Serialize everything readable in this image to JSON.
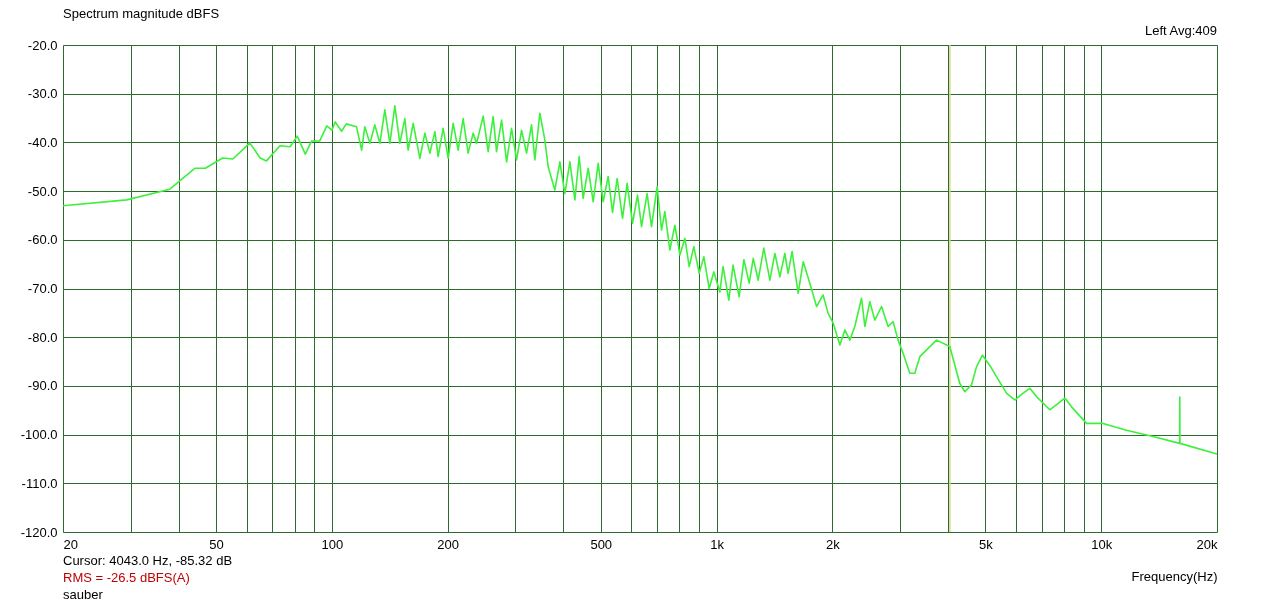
{
  "chart_data": {
    "type": "line",
    "title": "Spectrum magnitude dBFS",
    "xlabel": "Frequency(Hz)",
    "annotations": [
      "Left  Avg:409",
      "Cursor:  4043.0 Hz, -85.32 dB",
      "RMS =  -26.5 dBFS(A)",
      "sauber"
    ],
    "log": "x",
    "grid": true,
    "marker": "none",
    "line_style": "solid",
    "xlim": [
      20,
      20000
    ],
    "ylim": [
      -120,
      -20
    ],
    "xticks": [
      {
        "value": 20,
        "label": "20"
      },
      {
        "value": 30,
        "label": null
      },
      {
        "value": 40,
        "label": null
      },
      {
        "value": 50,
        "label": "50"
      },
      {
        "value": 60,
        "label": null
      },
      {
        "value": 70,
        "label": null
      },
      {
        "value": 80,
        "label": null
      },
      {
        "value": 90,
        "label": null
      },
      {
        "value": 100,
        "label": "100"
      },
      {
        "value": 200,
        "label": "200"
      },
      {
        "value": 300,
        "label": null
      },
      {
        "value": 400,
        "label": null
      },
      {
        "value": 500,
        "label": "500"
      },
      {
        "value": 600,
        "label": null
      },
      {
        "value": 700,
        "label": null
      },
      {
        "value": 800,
        "label": null
      },
      {
        "value": 900,
        "label": null
      },
      {
        "value": 1000,
        "label": "1k"
      },
      {
        "value": 2000,
        "label": "2k"
      },
      {
        "value": 3000,
        "label": null
      },
      {
        "value": 4000,
        "label": null
      },
      {
        "value": 5000,
        "label": "5k"
      },
      {
        "value": 6000,
        "label": null
      },
      {
        "value": 7000,
        "label": null
      },
      {
        "value": 8000,
        "label": null
      },
      {
        "value": 9000,
        "label": null
      },
      {
        "value": 10000,
        "label": "10k"
      },
      {
        "value": 20000,
        "label": "20k"
      }
    ],
    "yticks": [
      {
        "value": -20,
        "label": "-20.0"
      },
      {
        "value": -30,
        "label": "-30.0"
      },
      {
        "value": -40,
        "label": "-40.0"
      },
      {
        "value": -50,
        "label": "-50.0"
      },
      {
        "value": -60,
        "label": "-60.0"
      },
      {
        "value": -70,
        "label": "-70.0"
      },
      {
        "value": -80,
        "label": "-80.0"
      },
      {
        "value": -90,
        "label": "-90.0"
      },
      {
        "value": -100,
        "label": "-100.0"
      },
      {
        "value": -110,
        "label": "-110.0"
      },
      {
        "value": -120,
        "label": "-120.0"
      }
    ],
    "ref_lines": [
      {
        "axis": "x",
        "value": 4043,
        "label": null,
        "color": "#d8d890"
      }
    ],
    "x": [
      20,
      29.3,
      37.9,
      44.1,
      46.9,
      52.0,
      55.3,
      61.2,
      65.1,
      67.6,
      73.3,
      77.9,
      81.3,
      85.3,
      88.6,
      93,
      97,
      100,
      102,
      106,
      109,
      115.9,
      119.5,
      121.8,
      125.6,
      129.3,
      133.3,
      137.3,
      141.5,
      145.8,
      150.2,
      154.8,
      157.9,
      162.7,
      169.3,
      174.5,
      179.8,
      185.3,
      188.9,
      194.7,
      200.6,
      206.7,
      213.0,
      219.4,
      226.1,
      233.0,
      237.8,
      247.4,
      254.9,
      262.6,
      268.0,
      276.2,
      284.6,
      293.2,
      302.1,
      311.3,
      320.7,
      330.4,
      337.0,
      347.3,
      357.8,
      365.0,
      379.9,
      391.5,
      403.4,
      415.7,
      428.3,
      439.5,
      450.1,
      463.8,
      477.9,
      492.4,
      507.4,
      522.7,
      536.6,
      551.6,
      569.7,
      585.6,
      604.8,
      623.2,
      638.3,
      659.9,
      677.6,
      700.8,
      719.5,
      733.8,
      756.2,
      779.3,
      803.0,
      827.4,
      849.0,
      873.0,
      901.3,
      926.9,
      956.8,
      984.0,
      1020,
      1040,
      1076,
      1104,
      1145,
      1178,
      1216,
      1246,
      1283,
      1327,
      1376,
      1418,
      1461,
      1505,
      1535,
      1572,
      1630,
      1680,
      1748,
      1820,
      1892,
      1950,
      2010,
      2092,
      2156,
      2221,
      2288,
      2382,
      2430,
      2503,
      2579,
      2685,
      2793,
      2877,
      2965,
      3055,
      3180,
      3277,
      3377,
      3548,
      3731,
      4040,
      4290,
      4420,
      4600,
      4740,
      4913,
      5133,
      5343,
      5672,
      5963,
      6266,
      6523,
      6788,
      7352,
      8043,
      8372,
      9159,
      10110,
      11635,
      13640,
      15990,
      16007,
      16020,
      20000
    ],
    "series": [
      {
        "color": "#3cf03c",
        "values": [
          -53.0,
          -51.8,
          -49.6,
          -45.3,
          -45.3,
          -43.2,
          -43.4,
          -40.1,
          -43.2,
          -43.8,
          -40.7,
          -40.9,
          -38.7,
          -42.4,
          -39.7,
          -39.7,
          -36.6,
          -37.5,
          -35.8,
          -37.7,
          -36.2,
          -36.8,
          -41.6,
          -36.8,
          -40.2,
          -36.4,
          -40.2,
          -33.3,
          -40.2,
          -32.5,
          -40.2,
          -35.1,
          -41.6,
          -36.1,
          -43.3,
          -38.1,
          -42.2,
          -37.8,
          -42.9,
          -37.1,
          -43.3,
          -36.1,
          -41.6,
          -35.1,
          -42.2,
          -38.1,
          -40.2,
          -34.6,
          -41.9,
          -34.7,
          -41.9,
          -35.4,
          -44.0,
          -37.1,
          -43.6,
          -37.5,
          -42.2,
          -36.4,
          -43.6,
          -34.0,
          -39.5,
          -45.0,
          -49.8,
          -44.0,
          -50.5,
          -44.0,
          -51.8,
          -42.9,
          -51.5,
          -45.3,
          -52.2,
          -44.3,
          -52.2,
          -47.0,
          -54.4,
          -47.4,
          -55.6,
          -48.4,
          -56.6,
          -50.8,
          -57.3,
          -50.5,
          -57.3,
          -49.1,
          -58.0,
          -54.2,
          -62.1,
          -57.0,
          -63.1,
          -59.7,
          -65.5,
          -61.4,
          -66.9,
          -63.5,
          -70.0,
          -66.6,
          -70.7,
          -65.5,
          -72.4,
          -65.2,
          -71.7,
          -64.1,
          -68.9,
          -63.8,
          -68.3,
          -61.7,
          -68.3,
          -62.8,
          -67.6,
          -62.8,
          -66.9,
          -62.4,
          -71.0,
          -64.5,
          -68.9,
          -73.7,
          -71.3,
          -75.1,
          -77.1,
          -81.6,
          -78.5,
          -80.6,
          -77.8,
          -72.0,
          -77.8,
          -72.7,
          -76.5,
          -73.7,
          -77.8,
          -76.8,
          -80.6,
          -83.3,
          -87.4,
          -87.4,
          -84.0,
          -82.3,
          -80.6,
          -81.9,
          -89.5,
          -91.2,
          -89.8,
          -86.1,
          -83.7,
          -85.8,
          -88.1,
          -91.5,
          -92.9,
          -91.5,
          -90.5,
          -92.2,
          -94.9,
          -92.5,
          -94.3,
          -97.7,
          -97.7,
          -99.1,
          -100.4,
          -101.8,
          -92.3,
          -101.8,
          -104.0
        ]
      }
    ]
  }
}
